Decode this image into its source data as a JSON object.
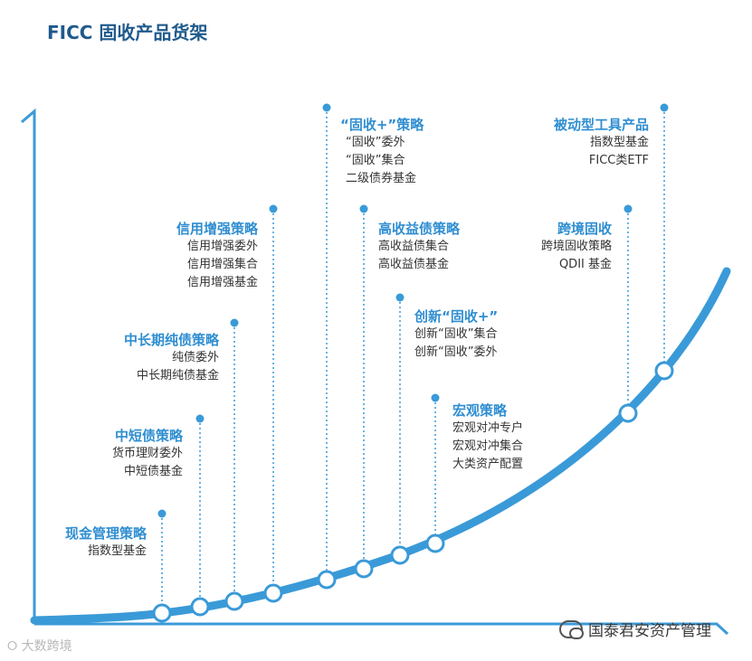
{
  "title": "FICC 固收产品货架",
  "categories": [
    {
      "heading": "现金管理策略",
      "items": [
        "指数型基金"
      ]
    },
    {
      "heading": "中短债策略",
      "items": [
        "货币理财委外",
        "中短债基金"
      ]
    },
    {
      "heading": "中长期纯债策略",
      "items": [
        "纯债委外",
        "中长期纯债基金"
      ]
    },
    {
      "heading": "信用增强策略",
      "items": [
        "信用增强委外",
        "信用增强集合",
        "信用增强基金"
      ]
    },
    {
      "heading": "“固收+”策略",
      "items": [
        "“固收”委外",
        "“固收”集合",
        "二级债券基金"
      ]
    },
    {
      "heading": "高收益债策略",
      "items": [
        "高收益债集合",
        "高收益债基金"
      ]
    },
    {
      "heading": "创新“固收+”",
      "items": [
        "创新“固收”集合",
        "创新“固收”委外"
      ]
    },
    {
      "heading": "宏观策略",
      "items": [
        "宏观对冲专户",
        "宏观对冲集合",
        "大类资产配置"
      ]
    },
    {
      "heading": "跨境固收",
      "items": [
        "跨境固收策略",
        "QDII 基金"
      ]
    },
    {
      "heading": "被动型工具产品",
      "items": [
        "指数型基金",
        "FICC类ETF"
      ]
    }
  ],
  "colors": {
    "curve": "#3a9ad8",
    "axis": "#3a9ad8",
    "heading": "#2f8ed1",
    "dotted": "#3a9ad8",
    "title": "#1f5a8c"
  },
  "watermark_left": "大数跨境",
  "watermark_right": "国泰君安资产管理"
}
